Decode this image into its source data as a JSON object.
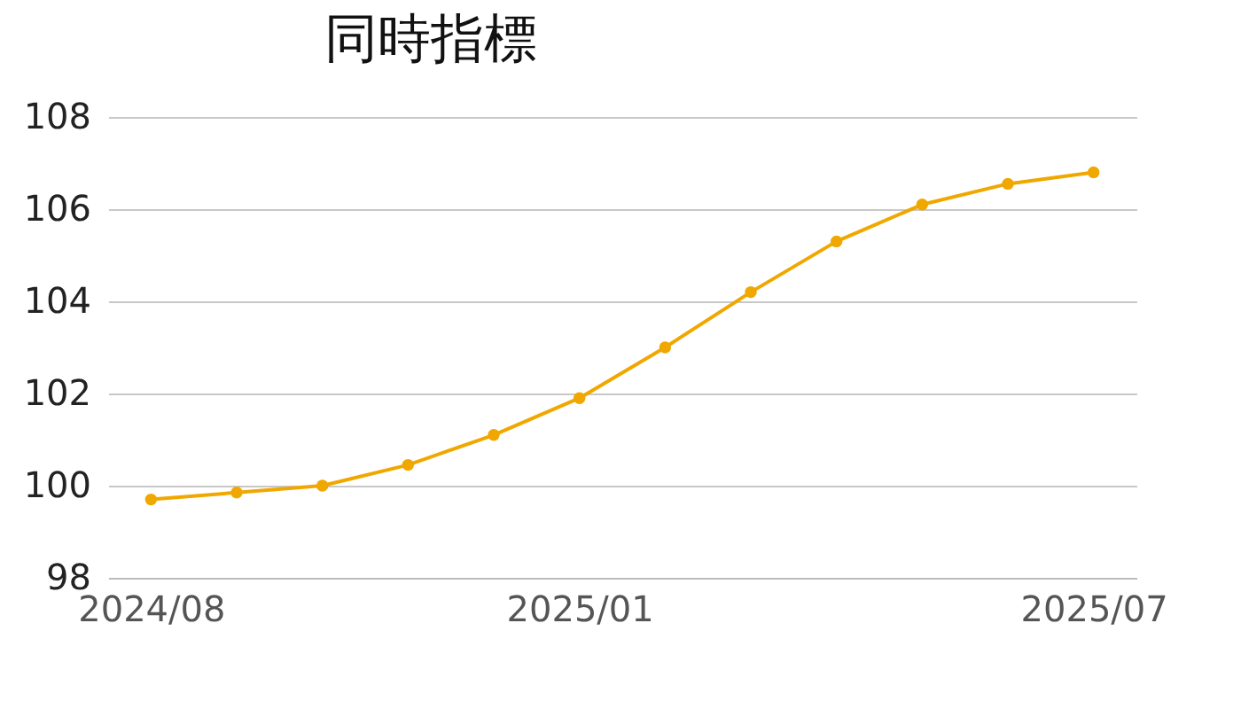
{
  "chart_data": {
    "type": "line",
    "title": "同時指標",
    "categories": [
      "2024/08",
      null,
      null,
      null,
      null,
      "2025/01",
      null,
      null,
      null,
      null,
      null,
      "2025/07"
    ],
    "series": [
      {
        "color": "#f0a800",
        "values": [
          99.7,
          99.85,
          100.0,
          100.45,
          101.1,
          101.9,
          103.0,
          104.2,
          105.3,
          106.1,
          106.55,
          106.8
        ]
      }
    ],
    "ylim": [
      98,
      108
    ],
    "yticks": [
      98,
      100,
      102,
      104,
      106,
      108
    ],
    "grid": "y",
    "legend": false,
    "marker": "circle",
    "line_style": "solid"
  }
}
